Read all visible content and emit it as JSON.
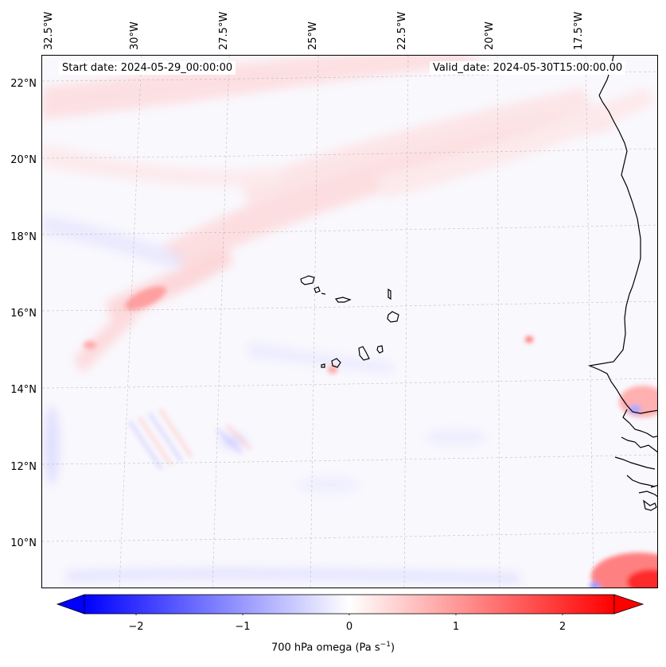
{
  "map": {
    "lon_labels": [
      "32.5°W",
      "30°W",
      "27.5°W",
      "25°W",
      "22.5°W",
      "20°W",
      "17.5°W"
    ],
    "lat_labels": [
      "22°N",
      "20°N",
      "18°N",
      "16°N",
      "14°N",
      "12°N",
      "10°N"
    ],
    "start_date": "Start date: 2024-05-29_00:00:00",
    "valid_date": "Valid_date: 2024-05-30T15:00:00.00"
  },
  "colorbar": {
    "label_prefix": "700 hPa omega (Pa s",
    "label_exp": "−1",
    "label_suffix": ")",
    "ticks": [
      "−2",
      "−1",
      "0",
      "1",
      "2"
    ],
    "colormap": [
      "#0000ff",
      "#ffffff",
      "#ff0000"
    ]
  }
}
